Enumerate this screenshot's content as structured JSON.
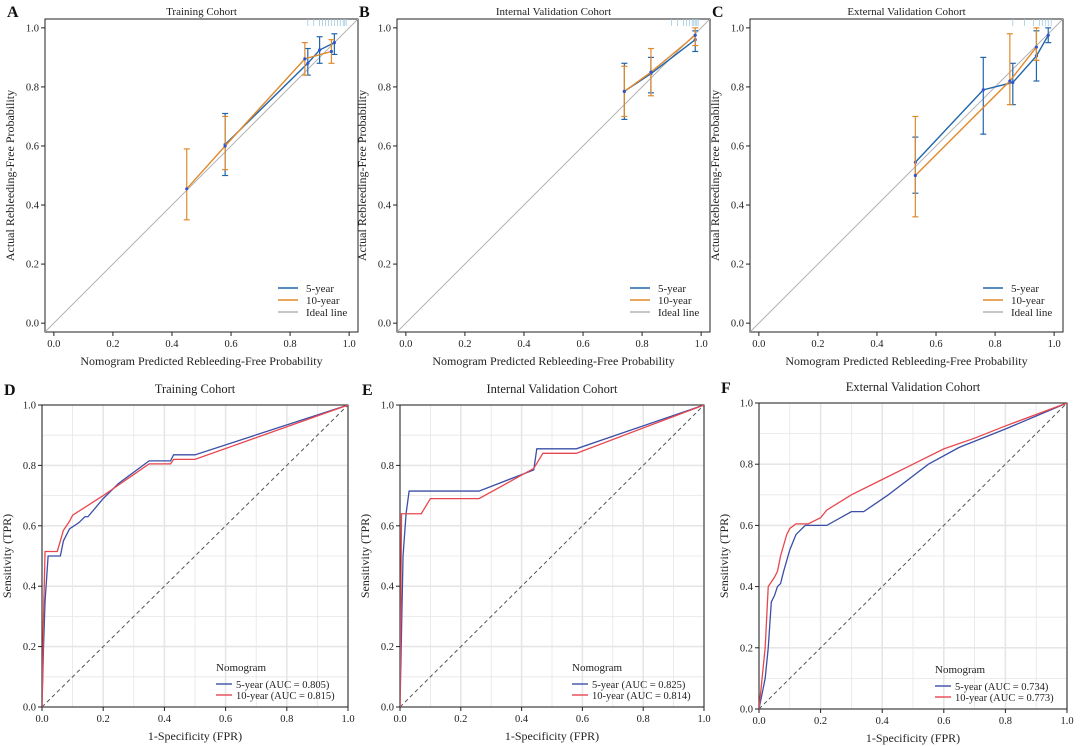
{
  "colors": {
    "five_year": "#2166ac",
    "ten_year": "#e08a2c",
    "ten_year_roc": "#e8474f",
    "five_year_roc": "#3b4fa8",
    "ideal": "#b3b3b3",
    "diag": "#555555",
    "grid": "#e6e6e6",
    "ebar_marker": "#3355cc"
  },
  "chart_data": [
    {
      "id": "A",
      "letter": "A",
      "type": "line",
      "kind": "calibration",
      "title": "Training Cohort",
      "xlabel": "Nomogram Predicted Rebleeding-Free Probability",
      "ylabel": "Actual Rebleeding-Free Probability",
      "xlim": [
        -0.03,
        1.03
      ],
      "ylim": [
        -0.03,
        1.03
      ],
      "xticks": [
        0.0,
        0.2,
        0.4,
        0.6,
        0.8,
        1.0
      ],
      "xtick_labels": [
        "0.0",
        "0.2",
        "0.4",
        "0.6",
        "0.8",
        "1.0"
      ],
      "yticks": [
        0.0,
        0.2,
        0.4,
        0.6,
        0.8,
        1.0
      ],
      "ytick_labels": [
        "0.0",
        "0.2",
        "0.4",
        "0.6",
        "0.8",
        "1.0"
      ],
      "grid": false,
      "legend_position": "bottom-right",
      "legend_title": "",
      "legend": [
        "5-year",
        "10-year",
        "Ideal line"
      ],
      "rug": [
        0.86,
        0.88,
        0.9,
        0.91,
        0.92,
        0.93,
        0.94,
        0.95,
        0.96,
        0.97,
        0.98,
        0.985,
        0.99
      ],
      "series": [
        {
          "name": "5-year",
          "color_key": "five_year",
          "x": [
            0.58,
            0.86,
            0.9,
            0.95
          ],
          "y": [
            0.605,
            0.88,
            0.925,
            0.95
          ],
          "err_low": [
            0.5,
            0.84,
            0.88,
            0.91
          ],
          "err_high": [
            0.71,
            0.93,
            0.97,
            0.98
          ]
        },
        {
          "name": "10-year",
          "color_key": "ten_year",
          "x": [
            0.45,
            0.58,
            0.85,
            0.94
          ],
          "y": [
            0.455,
            0.6,
            0.895,
            0.92
          ],
          "err_low": [
            0.35,
            0.52,
            0.84,
            0.88
          ],
          "err_high": [
            0.59,
            0.7,
            0.95,
            0.96
          ]
        }
      ]
    },
    {
      "id": "B",
      "letter": "B",
      "type": "line",
      "kind": "calibration",
      "title": "Internal Validation Cohort",
      "xlabel": "Nomogram Predicted Rebleeding-Free Probability",
      "ylabel": "Actual Rebleeding-Free Probability",
      "xlim": [
        -0.03,
        1.03
      ],
      "ylim": [
        -0.03,
        1.03
      ],
      "xticks": [
        0.0,
        0.2,
        0.4,
        0.6,
        0.8,
        1.0
      ],
      "xtick_labels": [
        "0.0",
        "0.2",
        "0.4",
        "0.6",
        "0.8",
        "1.0"
      ],
      "yticks": [
        0.0,
        0.2,
        0.4,
        0.6,
        0.8,
        1.0
      ],
      "ytick_labels": [
        "0.0",
        "0.2",
        "0.4",
        "0.6",
        "0.8",
        "1.0"
      ],
      "grid": false,
      "legend_position": "bottom-right",
      "legend_title": "",
      "legend": [
        "5-year",
        "10-year",
        "Ideal line"
      ],
      "rug": [
        0.9,
        0.92,
        0.94,
        0.95,
        0.96,
        0.97,
        0.975,
        0.98,
        0.985,
        0.99
      ],
      "series": [
        {
          "name": "5-year",
          "color_key": "five_year",
          "x": [
            0.74,
            0.83,
            0.98
          ],
          "y": [
            0.785,
            0.845,
            0.96
          ],
          "err_low": [
            0.69,
            0.78,
            0.92
          ],
          "err_high": [
            0.88,
            0.9,
            0.99
          ]
        },
        {
          "name": "10-year",
          "color_key": "ten_year",
          "x": [
            0.74,
            0.83,
            0.98
          ],
          "y": [
            0.785,
            0.85,
            0.975
          ],
          "err_low": [
            0.7,
            0.77,
            0.94
          ],
          "err_high": [
            0.87,
            0.93,
            1.0
          ]
        }
      ]
    },
    {
      "id": "C",
      "letter": "C",
      "type": "line",
      "kind": "calibration",
      "title": "External Validation Cohort",
      "xlabel": "Nomogram Predicted Rebleeding-Free Probability",
      "ylabel": "Actual Rebleeding-Free Probability",
      "xlim": [
        -0.03,
        1.03
      ],
      "ylim": [
        -0.03,
        1.03
      ],
      "xticks": [
        0.0,
        0.2,
        0.4,
        0.6,
        0.8,
        1.0
      ],
      "xtick_labels": [
        "0.0",
        "0.2",
        "0.4",
        "0.6",
        "0.8",
        "1.0"
      ],
      "yticks": [
        0.0,
        0.2,
        0.4,
        0.6,
        0.8,
        1.0
      ],
      "ytick_labels": [
        "0.0",
        "0.2",
        "0.4",
        "0.6",
        "0.8",
        "1.0"
      ],
      "grid": false,
      "legend_position": "bottom-right",
      "legend_title": "",
      "legend": [
        "5-year",
        "10-year",
        "Ideal line"
      ],
      "rug": [
        0.86,
        0.9,
        0.93,
        0.95,
        0.96,
        0.97,
        0.98,
        0.99
      ],
      "series": [
        {
          "name": "5-year",
          "color_key": "five_year",
          "x": [
            0.53,
            0.76,
            0.86,
            0.94,
            0.98
          ],
          "y": [
            0.545,
            0.79,
            0.815,
            0.905,
            0.975
          ],
          "err_low": [
            0.44,
            0.64,
            0.74,
            0.82,
            0.95
          ],
          "err_high": [
            0.63,
            0.9,
            0.88,
            0.99,
            1.0
          ]
        },
        {
          "name": "10-year",
          "color_key": "ten_year",
          "x": [
            0.53,
            0.85,
            0.94
          ],
          "y": [
            0.5,
            0.82,
            0.935
          ],
          "err_low": [
            0.36,
            0.74,
            0.89
          ],
          "err_high": [
            0.7,
            0.98,
            1.0
          ]
        }
      ]
    },
    {
      "id": "D",
      "letter": "D",
      "type": "line",
      "kind": "roc",
      "title": "Training Cohort",
      "xlabel": "1-Specificity (FPR)",
      "ylabel": "Sensitivity (TPR)",
      "xlim": [
        0,
        1
      ],
      "ylim": [
        0,
        1
      ],
      "xticks": [
        0.0,
        0.2,
        0.4,
        0.6,
        0.8,
        1.0
      ],
      "xtick_labels": [
        "0.0",
        "0.2",
        "0.4",
        "0.6",
        "0.8",
        "1.0"
      ],
      "yticks": [
        0.0,
        0.2,
        0.4,
        0.6,
        0.8,
        1.0
      ],
      "ytick_labels": [
        "0.0",
        "0.2",
        "0.4",
        "0.6",
        "0.8",
        "1.0"
      ],
      "grid": true,
      "legend_position": "bottom-right",
      "legend_title": "Nomogram",
      "legend": [
        "5-year (AUC = 0.805)",
        "10-year (AUC = 0.815)"
      ],
      "series": [
        {
          "name": "5-year (AUC = 0.805)",
          "color_key": "five_year_roc",
          "x": [
            0,
            0.005,
            0.01,
            0.02,
            0.03,
            0.06,
            0.07,
            0.09,
            0.12,
            0.14,
            0.15,
            0.2,
            0.25,
            0.35,
            0.42,
            0.43,
            0.5,
            1.0
          ],
          "y": [
            0,
            0.2,
            0.35,
            0.5,
            0.5,
            0.5,
            0.55,
            0.59,
            0.61,
            0.63,
            0.63,
            0.69,
            0.74,
            0.815,
            0.815,
            0.835,
            0.835,
            1.0
          ]
        },
        {
          "name": "10-year (AUC = 0.815)",
          "color_key": "ten_year_roc",
          "x": [
            0,
            0.005,
            0.01,
            0.02,
            0.05,
            0.07,
            0.09,
            0.1,
            0.2,
            0.3,
            0.35,
            0.42,
            0.43,
            0.5,
            1.0
          ],
          "y": [
            0,
            0.3,
            0.515,
            0.515,
            0.515,
            0.585,
            0.615,
            0.635,
            0.7,
            0.77,
            0.805,
            0.805,
            0.82,
            0.82,
            1.0
          ]
        }
      ]
    },
    {
      "id": "E",
      "letter": "E",
      "type": "line",
      "kind": "roc",
      "title": "Internal Validation Cohort",
      "xlabel": "1-Specificity (FPR)",
      "ylabel": "Sensitivity (TPR)",
      "xlim": [
        0,
        1
      ],
      "ylim": [
        0,
        1
      ],
      "xticks": [
        0.0,
        0.2,
        0.4,
        0.6,
        0.8,
        1.0
      ],
      "xtick_labels": [
        "0.0",
        "0.2",
        "0.4",
        "0.6",
        "0.8",
        "1.0"
      ],
      "yticks": [
        0.0,
        0.2,
        0.4,
        0.6,
        0.8,
        1.0
      ],
      "ytick_labels": [
        "0.0",
        "0.2",
        "0.4",
        "0.6",
        "0.8",
        "1.0"
      ],
      "grid": true,
      "legend_position": "bottom-right",
      "legend_title": "Nomogram",
      "legend": [
        "5-year (AUC = 0.825)",
        "10-year (AUC = 0.814)"
      ],
      "series": [
        {
          "name": "5-year (AUC = 0.825)",
          "color_key": "five_year_roc",
          "x": [
            0,
            0.01,
            0.02,
            0.03,
            0.26,
            0.44,
            0.45,
            0.58,
            1.0
          ],
          "y": [
            0,
            0.5,
            0.64,
            0.715,
            0.715,
            0.785,
            0.855,
            0.855,
            1.0
          ]
        },
        {
          "name": "10-year (AUC = 0.814)",
          "color_key": "ten_year_roc",
          "x": [
            0,
            0.005,
            0.01,
            0.07,
            0.1,
            0.26,
            0.44,
            0.47,
            0.58,
            1.0
          ],
          "y": [
            0,
            0.64,
            0.64,
            0.64,
            0.69,
            0.69,
            0.79,
            0.84,
            0.84,
            1.0
          ]
        }
      ]
    },
    {
      "id": "F",
      "letter": "F",
      "type": "line",
      "kind": "roc",
      "title": "External Validation Cohort",
      "xlabel": "1-Specificity (FPR)",
      "ylabel": "Sensitivity (TPR)",
      "xlim": [
        0,
        1
      ],
      "ylim": [
        0,
        1
      ],
      "xticks": [
        0.0,
        0.2,
        0.4,
        0.6,
        0.8,
        1.0
      ],
      "xtick_labels": [
        "0.0",
        "0.2",
        "0.4",
        "0.6",
        "0.8",
        "1.0"
      ],
      "yticks": [
        0.0,
        0.2,
        0.4,
        0.6,
        0.8,
        1.0
      ],
      "ytick_labels": [
        "0.0",
        "0.2",
        "0.4",
        "0.6",
        "0.8",
        "1.0"
      ],
      "grid": true,
      "legend_position": "bottom-right",
      "legend_title": "Nomogram",
      "legend": [
        "5-year (AUC = 0.734)",
        "10-year (AUC = 0.773)"
      ],
      "series": [
        {
          "name": "5-year (AUC = 0.734)",
          "color_key": "five_year_roc",
          "x": [
            0,
            0.01,
            0.02,
            0.03,
            0.04,
            0.05,
            0.06,
            0.07,
            0.08,
            0.1,
            0.12,
            0.15,
            0.18,
            0.22,
            0.3,
            0.34,
            0.42,
            0.55,
            0.65,
            0.8,
            1.0
          ],
          "y": [
            0,
            0.05,
            0.1,
            0.2,
            0.35,
            0.37,
            0.4,
            0.41,
            0.45,
            0.52,
            0.57,
            0.6,
            0.6,
            0.6,
            0.645,
            0.645,
            0.7,
            0.8,
            0.855,
            0.915,
            1.0
          ]
        },
        {
          "name": "10-year (AUC = 0.773)",
          "color_key": "ten_year_roc",
          "x": [
            0,
            0.01,
            0.02,
            0.03,
            0.05,
            0.06,
            0.07,
            0.09,
            0.1,
            0.12,
            0.16,
            0.2,
            0.22,
            0.3,
            0.4,
            0.5,
            0.6,
            0.7,
            0.8,
            1.0
          ],
          "y": [
            0,
            0.1,
            0.2,
            0.4,
            0.43,
            0.45,
            0.5,
            0.57,
            0.59,
            0.605,
            0.605,
            0.625,
            0.65,
            0.7,
            0.75,
            0.8,
            0.85,
            0.885,
            0.925,
            1.0
          ]
        }
      ]
    }
  ]
}
